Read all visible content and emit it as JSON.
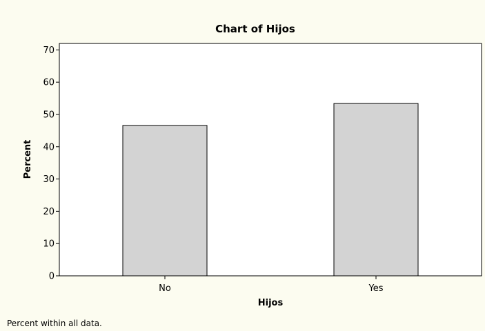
{
  "chart_data": {
    "type": "bar",
    "title": "Chart of Hijos",
    "xlabel": "Hijos",
    "ylabel": "Percent",
    "categories": [
      "No",
      "Yes"
    ],
    "values": [
      46.6,
      53.4
    ],
    "ylim": [
      0,
      72
    ],
    "yticks": [
      0,
      10,
      20,
      30,
      40,
      50,
      60,
      70
    ],
    "grid": false,
    "legend": "none",
    "colors": {
      "background": "#fcfcf0",
      "plot_area": "#ffffff",
      "bar_fill": "#d3d3d3",
      "bar_stroke": "#000000"
    },
    "footnote": "Percent within all data."
  }
}
